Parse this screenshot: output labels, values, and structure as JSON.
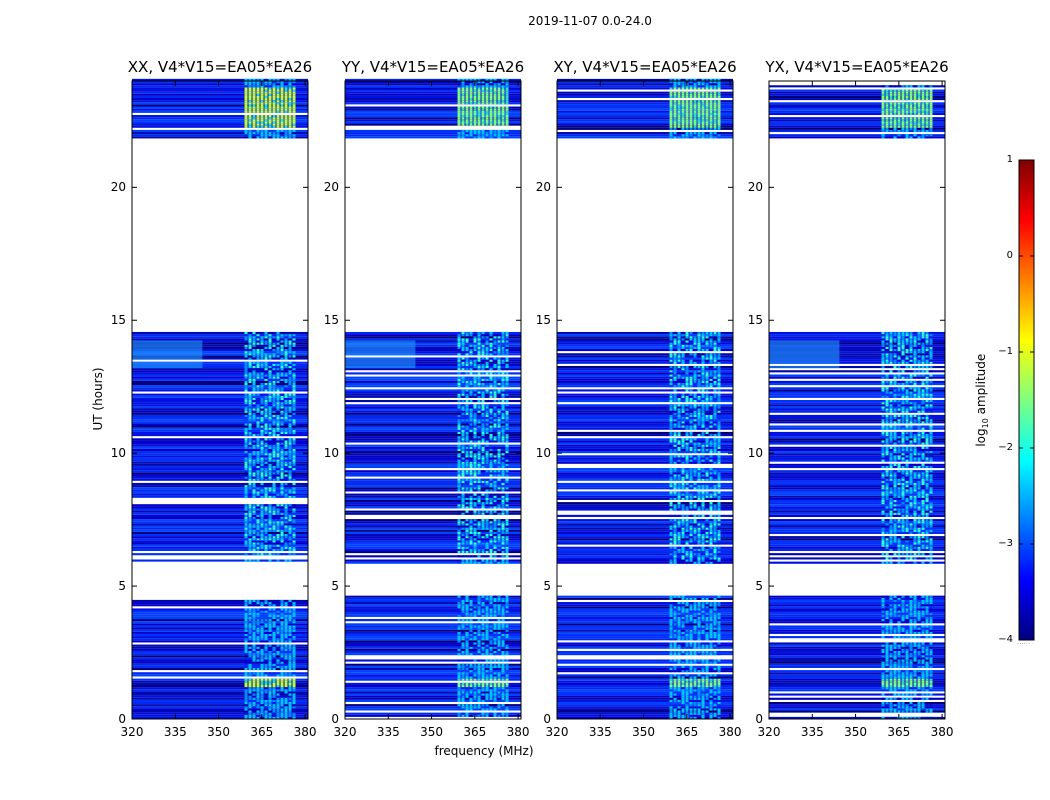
{
  "figure": {
    "suptitle": "2019-11-07 0.0-24.0",
    "ylabel": "UT (hours)",
    "xlabel": "frequency (MHz)"
  },
  "colorbar": {
    "label_prefix": "log",
    "label_sub": "10",
    "label_suffix": " amplitude",
    "range": [
      -4,
      1
    ],
    "ticks": [
      "1",
      "0",
      "−1",
      "−2",
      "−3",
      "−4"
    ],
    "footnote": "......",
    "colors": [
      "#00007f",
      "#0000ff",
      "#007fff",
      "#00ffff",
      "#7fff7f",
      "#ffff00",
      "#ff7f00",
      "#ff0000",
      "#7f0000"
    ]
  },
  "chart_data": [
    {
      "type": "heatmap",
      "title": "XX, V4*V15=EA05*EA26",
      "xlabel": "frequency (MHz)",
      "ylabel": "UT (hours)",
      "xlim": [
        320,
        381
      ],
      "ylim": [
        0,
        24
      ],
      "xticks": [
        "320",
        "335",
        "350",
        "365",
        "380"
      ],
      "yticks": [
        "0",
        "5",
        "10",
        "15",
        "20"
      ],
      "value_range_log10": [
        -4,
        1
      ],
      "rfi_band_mhz": [
        359,
        376
      ],
      "rfi_bright_intervals_ut": [
        [
          1.2,
          1.5
        ],
        [
          22.2,
          23.7
        ]
      ],
      "no_data_intervals_ut": [
        [
          4.6,
          5.8
        ],
        [
          14.5,
          21.8
        ]
      ]
    },
    {
      "type": "heatmap",
      "title": "YY, V4*V15=EA05*EA26",
      "xlabel": "frequency (MHz)",
      "ylabel": "UT (hours)",
      "xlim": [
        320,
        381
      ],
      "ylim": [
        0,
        24
      ],
      "xticks": [
        "320",
        "335",
        "350",
        "365",
        "380"
      ],
      "yticks": [
        "0",
        "5",
        "10",
        "15",
        "20"
      ],
      "value_range_log10": [
        -4,
        1
      ],
      "rfi_band_mhz": [
        359,
        376
      ],
      "rfi_bright_intervals_ut": [
        [
          1.2,
          1.5
        ],
        [
          22.2,
          23.7
        ]
      ],
      "no_data_intervals_ut": [
        [
          4.6,
          5.8
        ],
        [
          14.5,
          21.8
        ]
      ]
    },
    {
      "type": "heatmap",
      "title": "XY, V4*V15=EA05*EA26",
      "xlabel": "frequency (MHz)",
      "ylabel": "UT (hours)",
      "xlim": [
        320,
        381
      ],
      "ylim": [
        0,
        24
      ],
      "xticks": [
        "320",
        "335",
        "350",
        "365",
        "380"
      ],
      "yticks": [
        "0",
        "5",
        "10",
        "15",
        "20"
      ],
      "value_range_log10": [
        -4,
        1
      ],
      "rfi_band_mhz": [
        359,
        376
      ],
      "rfi_bright_intervals_ut": [
        [
          1.2,
          1.5
        ],
        [
          22.2,
          23.7
        ]
      ],
      "no_data_intervals_ut": [
        [
          4.6,
          5.8
        ],
        [
          14.5,
          21.8
        ]
      ]
    },
    {
      "type": "heatmap",
      "title": "YX, V4*V15=EA05*EA26",
      "xlabel": "frequency (MHz)",
      "ylabel": "UT (hours)",
      "xlim": [
        320,
        381
      ],
      "ylim": [
        0,
        24
      ],
      "xticks": [
        "320",
        "335",
        "350",
        "365",
        "380"
      ],
      "yticks": [
        "0",
        "5",
        "10",
        "15",
        "20"
      ],
      "value_range_log10": [
        -4,
        1
      ],
      "rfi_band_mhz": [
        359,
        376
      ],
      "rfi_bright_intervals_ut": [
        [
          1.2,
          1.5
        ],
        [
          22.2,
          23.7
        ]
      ],
      "no_data_intervals_ut": [
        [
          4.6,
          5.8
        ],
        [
          14.5,
          21.8
        ]
      ]
    }
  ]
}
